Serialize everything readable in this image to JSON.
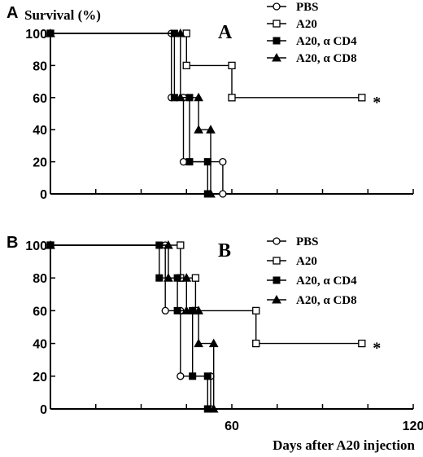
{
  "chart_data": [
    {
      "type": "line",
      "panel_letter": "A",
      "title": "A",
      "ylabel": "Survival (%)",
      "xlabel": "",
      "xlim": [
        0,
        120
      ],
      "ylim": [
        0,
        100
      ],
      "x_ticks": [],
      "y_ticks": [
        0,
        20,
        40,
        60,
        80,
        100
      ],
      "legend_position": "top-right",
      "series": [
        {
          "name": "PBS",
          "marker": "circle-open",
          "x": [
            0,
            40,
            40,
            44,
            44,
            57,
            57
          ],
          "y": [
            100,
            100,
            60,
            60,
            20,
            20,
            0
          ]
        },
        {
          "name": "A20",
          "marker": "square-open",
          "x": [
            0,
            45,
            45,
            60,
            60,
            103
          ],
          "y": [
            100,
            100,
            80,
            80,
            60,
            60
          ]
        },
        {
          "name": "A20, α CD4",
          "marker": "square-filled",
          "x": [
            0,
            41,
            41,
            46,
            46,
            52,
            52
          ],
          "y": [
            100,
            100,
            60,
            60,
            20,
            20,
            0
          ]
        },
        {
          "name": "A20, α CD8",
          "marker": "triangle-filled",
          "x": [
            0,
            43,
            43,
            49,
            49,
            53,
            53
          ],
          "y": [
            100,
            100,
            60,
            60,
            40,
            40,
            0
          ]
        }
      ],
      "annotations": [
        {
          "text": "*",
          "x": 105,
          "y": 60
        }
      ]
    },
    {
      "type": "line",
      "panel_letter": "B",
      "title": "B",
      "ylabel": "",
      "xlabel": "Days after A20 injection",
      "xlim": [
        0,
        120
      ],
      "ylim": [
        0,
        100
      ],
      "x_ticks": [
        0,
        60,
        120
      ],
      "y_ticks": [
        0,
        20,
        40,
        60,
        80,
        100
      ],
      "legend_position": "right",
      "series": [
        {
          "name": "PBS",
          "marker": "circle-open",
          "x": [
            0,
            38,
            38,
            43,
            43,
            53,
            53
          ],
          "y": [
            100,
            100,
            60,
            60,
            20,
            20,
            0
          ]
        },
        {
          "name": "A20",
          "marker": "square-open",
          "x": [
            0,
            43,
            43,
            48,
            48,
            68,
            68,
            103
          ],
          "y": [
            100,
            100,
            80,
            80,
            60,
            60,
            40,
            40
          ]
        },
        {
          "name": "A20, α CD4",
          "marker": "square-filled",
          "x": [
            0,
            36,
            36,
            42,
            42,
            47,
            47,
            52,
            52
          ],
          "y": [
            100,
            100,
            80,
            80,
            60,
            60,
            20,
            20,
            0
          ]
        },
        {
          "name": "A20, α CD8",
          "marker": "triangle-filled",
          "x": [
            0,
            39,
            39,
            45,
            45,
            49,
            49,
            54,
            54
          ],
          "y": [
            100,
            100,
            80,
            80,
            60,
            60,
            40,
            40,
            0
          ]
        }
      ],
      "annotations": [
        {
          "text": "*",
          "x": 105,
          "y": 40
        }
      ]
    }
  ]
}
